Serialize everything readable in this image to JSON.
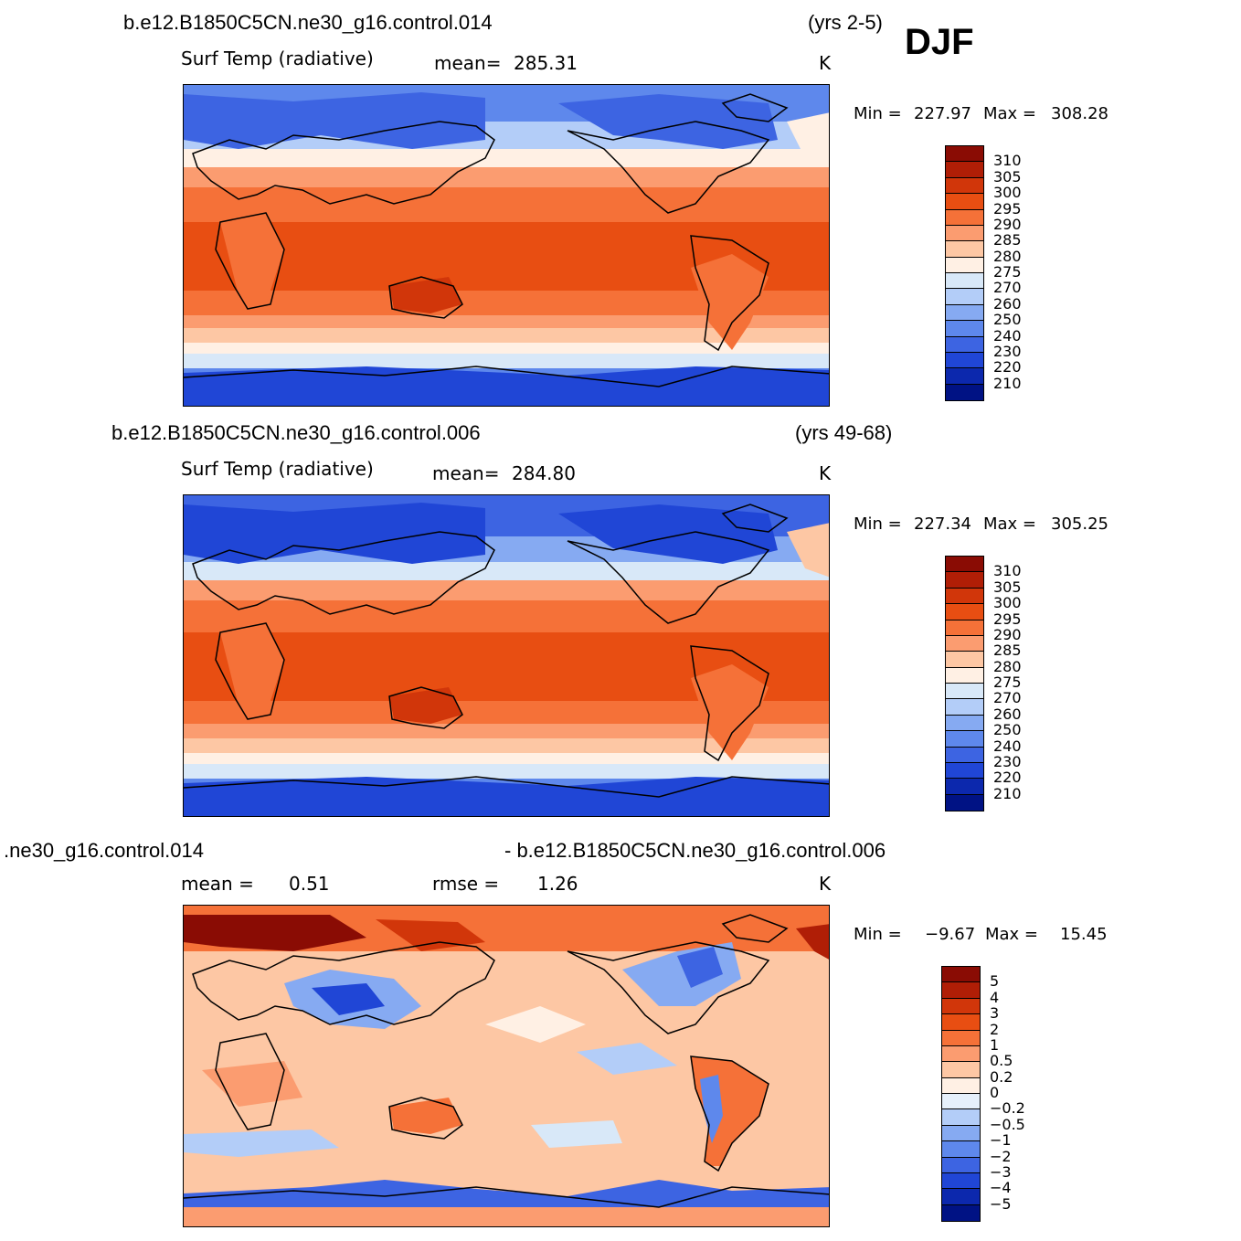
{
  "season": "DJF",
  "panels": [
    {
      "case": "b.e12.B1850C5CN.ne30_g16.control.014",
      "years": "(yrs 2-5)",
      "variable": "Surf Temp (radiative)",
      "stat1_label": "mean=",
      "stat1_value": "285.31",
      "units": "K",
      "min_label": "Min =",
      "min_value": "227.97",
      "max_label": "Max =",
      "max_value": "308.28",
      "colorbar": {
        "labels": [
          "310",
          "305",
          "300",
          "295",
          "290",
          "285",
          "280",
          "275",
          "270",
          "260",
          "250",
          "240",
          "230",
          "220",
          "210"
        ],
        "colors": [
          "#8a0c04",
          "#b01e06",
          "#d1360a",
          "#e84e12",
          "#f57138",
          "#fb9c70",
          "#fdc7a4",
          "#fff0e4",
          "#d8e8f8",
          "#b3cdf8",
          "#86aaf2",
          "#5e88ec",
          "#3d64e2",
          "#2046d6",
          "#0c28ad",
          "#001284"
        ]
      }
    },
    {
      "case": "b.e12.B1850C5CN.ne30_g16.control.006",
      "years": "(yrs 49-68)",
      "variable": "Surf Temp (radiative)",
      "stat1_label": "mean=",
      "stat1_value": "284.80",
      "units": "K",
      "min_label": "Min =",
      "min_value": "227.34",
      "max_label": "Max =",
      "max_value": "305.25",
      "colorbar": {
        "labels": [
          "310",
          "305",
          "300",
          "295",
          "290",
          "285",
          "280",
          "275",
          "270",
          "260",
          "250",
          "240",
          "230",
          "220",
          "210"
        ],
        "colors": [
          "#8a0c04",
          "#b01e06",
          "#d1360a",
          "#e84e12",
          "#f57138",
          "#fb9c70",
          "#fdc7a4",
          "#fff0e4",
          "#d8e8f8",
          "#b3cdf8",
          "#86aaf2",
          "#5e88ec",
          "#3d64e2",
          "#2046d6",
          "#0c28ad",
          "#001284"
        ]
      }
    },
    {
      "case_left": ".ne30_g16.control.014",
      "case_right": "- b.e12.B1850C5CN.ne30_g16.control.006",
      "stat1_label": "mean =",
      "stat1_value": "0.51",
      "stat2_label": "rmse =",
      "stat2_value": "1.26",
      "units": "K",
      "min_label": "Min =",
      "min_value": "−9.67",
      "max_label": "Max =",
      "max_value": "15.45",
      "colorbar": {
        "labels": [
          "5",
          "4",
          "3",
          "2",
          "1",
          "0.5",
          "0.2",
          "0",
          "−0.2",
          "−0.5",
          "−1",
          "−2",
          "−3",
          "−4",
          "−5"
        ],
        "colors": [
          "#8a0c04",
          "#b01e06",
          "#d1360a",
          "#e84e12",
          "#f57138",
          "#fb9c70",
          "#fdc7a4",
          "#fff0e4",
          "#e6f0fb",
          "#b3cdf8",
          "#86aaf2",
          "#5e88ec",
          "#3d64e2",
          "#2046d6",
          "#0c28ad",
          "#001284"
        ]
      }
    }
  ]
}
